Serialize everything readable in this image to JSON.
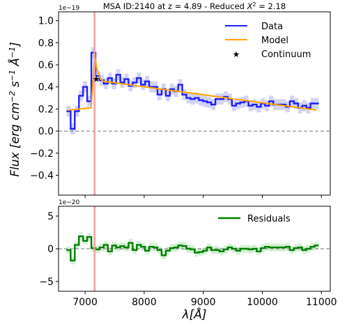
{
  "title": "MSA ID:2140 at z = 4.89 - Reduced ",
  "title_chi": "X",
  "title_chi_exp": "2",
  "title_value": " = 2.18",
  "ylabel": {
    "main": "Flux [erg cm",
    "e1": "−2",
    "s": " s",
    "e2": "−1",
    "a": " Å",
    "e3": "−1",
    "end": "]"
  },
  "xlabel": "λ[Å]",
  "colors": {
    "data": "#1f1fff",
    "model": "#ffa500",
    "residual": "#007f00",
    "vline": "#f4a0a0",
    "error_band": "#c8c8f4",
    "residual_band": "#c8ecc8"
  },
  "chart_data": [
    {
      "type": "line",
      "panel": "top",
      "exponent_label": "1e−19",
      "xlim": [
        6550,
        11150
      ],
      "ylim": [
        -0.58,
        1.08
      ],
      "yticks": [
        -0.4,
        -0.2,
        0.0,
        0.2,
        0.4,
        0.6,
        0.8,
        1.0
      ],
      "ytick_labels": [
        "−0.4",
        "−0.2",
        "0.0",
        "0.2",
        "0.4",
        "0.6",
        "0.8",
        "1.0"
      ],
      "xticks": [
        7000,
        8000,
        9000,
        10000,
        11000
      ],
      "reference_line_y": 0.0,
      "vline_x": 7160,
      "legend": [
        "Data",
        "Model",
        "Continuum"
      ],
      "legend_position": "upper right",
      "series": [
        {
          "name": "Data",
          "style": "step",
          "x": [
            6720,
            6790,
            6860,
            6930,
            7000,
            7070,
            7140,
            7210,
            7280,
            7350,
            7420,
            7490,
            7560,
            7630,
            7700,
            7770,
            7840,
            7910,
            7980,
            8050,
            8120,
            8190,
            8260,
            8330,
            8400,
            8470,
            8540,
            8610,
            8680,
            8750,
            8820,
            8890,
            8960,
            9030,
            9100,
            9170,
            9240,
            9310,
            9380,
            9450,
            9520,
            9590,
            9660,
            9730,
            9800,
            9870,
            9940,
            10010,
            10080,
            10150,
            10220,
            10290,
            10360,
            10430,
            10500,
            10570,
            10640,
            10710,
            10780,
            10850,
            10920
          ],
          "values": [
            0.18,
            0.02,
            0.18,
            0.32,
            0.4,
            0.27,
            0.71,
            0.5,
            0.46,
            0.43,
            0.48,
            0.43,
            0.51,
            0.44,
            0.47,
            0.41,
            0.44,
            0.48,
            0.42,
            0.45,
            0.4,
            0.4,
            0.33,
            0.38,
            0.32,
            0.38,
            0.36,
            0.42,
            0.33,
            0.3,
            0.29,
            0.3,
            0.28,
            0.27,
            0.26,
            0.24,
            0.29,
            0.29,
            0.31,
            0.29,
            0.23,
            0.25,
            0.26,
            0.27,
            0.23,
            0.24,
            0.22,
            0.25,
            0.23,
            0.27,
            0.24,
            0.24,
            0.24,
            0.22,
            0.27,
            0.25,
            0.21,
            0.23,
            0.21,
            0.25,
            0.25
          ],
          "error": 0.05
        },
        {
          "name": "Model",
          "style": "line",
          "x": [
            6720,
            7100,
            7130,
            7160,
            7200,
            7260,
            7320,
            10920
          ],
          "values": [
            0.19,
            0.21,
            0.42,
            0.7,
            0.56,
            0.47,
            0.45,
            0.19
          ]
        },
        {
          "name": "Continuum",
          "style": "marker",
          "x": [
            7190
          ],
          "values": [
            0.47
          ]
        }
      ]
    },
    {
      "type": "line",
      "panel": "bottom",
      "exponent_label": "1e−20",
      "xlim": [
        6550,
        11150
      ],
      "ylim": [
        -6.5,
        6.5
      ],
      "yticks": [
        -5,
        0,
        5
      ],
      "ytick_labels": [
        "−5",
        "0",
        "5"
      ],
      "xticks": [
        7000,
        8000,
        9000,
        10000,
        11000
      ],
      "xtick_labels": [
        "7000",
        "8000",
        "9000",
        "10000",
        "11000"
      ],
      "reference_line_y": 0.0,
      "vline_x": 7160,
      "legend": [
        "Residuals"
      ],
      "legend_position": "upper right",
      "series": [
        {
          "name": "Residuals",
          "style": "step",
          "x": [
            6720,
            6790,
            6860,
            6930,
            7000,
            7070,
            7140,
            7210,
            7280,
            7350,
            7420,
            7490,
            7560,
            7630,
            7700,
            7770,
            7840,
            7910,
            7980,
            8050,
            8120,
            8190,
            8260,
            8330,
            8400,
            8470,
            8540,
            8610,
            8680,
            8750,
            8820,
            8890,
            8960,
            9030,
            9100,
            9170,
            9240,
            9310,
            9380,
            9450,
            9520,
            9590,
            9660,
            9730,
            9800,
            9870,
            9940,
            10010,
            10080,
            10150,
            10220,
            10290,
            10360,
            10430,
            10500,
            10570,
            10640,
            10710,
            10780,
            10850,
            10920
          ],
          "values": [
            -0.2,
            -1.8,
            0.6,
            1.9,
            1.2,
            1.8,
            0.1,
            -0.1,
            0.2,
            0.6,
            -0.4,
            0.5,
            0.2,
            0.4,
            0.2,
            0.9,
            -0.2,
            0.6,
            0.3,
            -0.3,
            0.3,
            0.2,
            -0.2,
            -1.0,
            -0.3,
            0.1,
            0.2,
            0.5,
            0.4,
            0.0,
            -0.1,
            -0.6,
            -0.5,
            -0.3,
            0.2,
            -0.2,
            -0.2,
            -0.4,
            -0.1,
            0.2,
            0.0,
            -0.3,
            0.0,
            0.0,
            -0.1,
            0.0,
            -0.4,
            0.1,
            0.3,
            0.2,
            0.2,
            0.2,
            0.2,
            0.3,
            -0.2,
            0.1,
            0.2,
            -0.2,
            0.0,
            0.3,
            0.5
          ],
          "error": 0.6
        }
      ]
    }
  ]
}
